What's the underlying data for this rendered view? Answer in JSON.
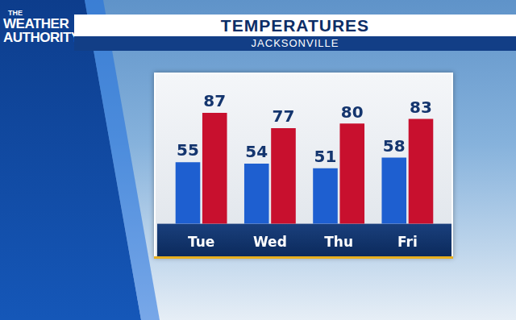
{
  "logo": "THE WEATHER AUTHORITY",
  "chart_data": {
    "type": "bar",
    "title": "TEMPERATURES",
    "subtitle": "JACKSONVILLE",
    "categories": [
      "Tue",
      "Wed",
      "Thu",
      "Fri"
    ],
    "series": [
      {
        "color": "#1e5fd0",
        "values": [
          55,
          54,
          51,
          58
        ]
      },
      {
        "color": "#c8102e",
        "values": [
          87,
          77,
          80,
          83
        ]
      }
    ],
    "ylim": [
      15,
      110
    ],
    "yticks": [
      15,
      110
    ],
    "grid": false,
    "data_labels": true,
    "tick_labels": "x"
  }
}
